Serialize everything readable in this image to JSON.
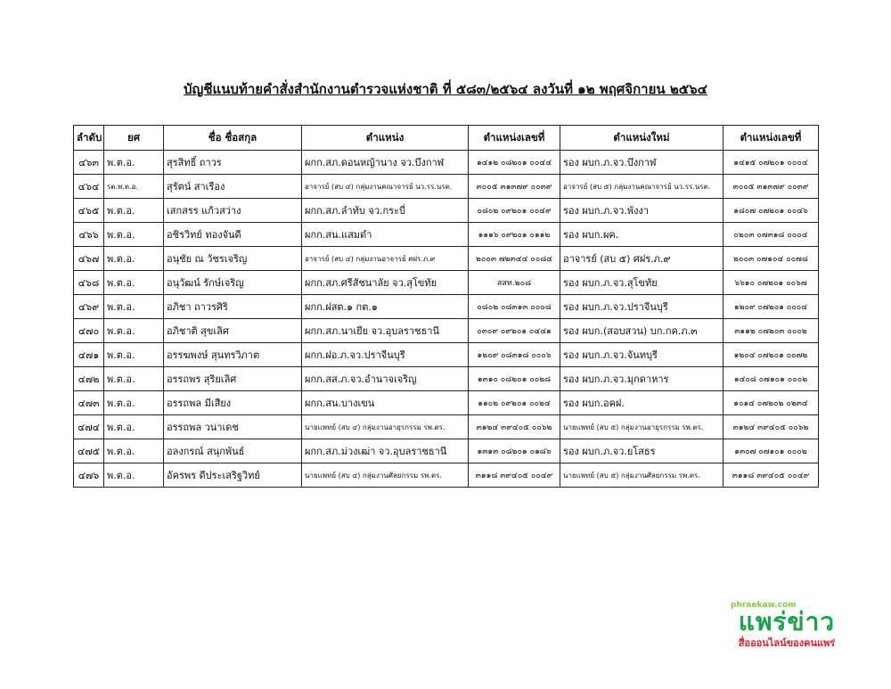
{
  "title": "บัญชีแนบท้ายคำสั่งสำนักงานตำรวจแห่งชาติ ที่ ๕๘๓/๒๕๖๔ ลงวันที่ ๑๒ พฤศจิกายน ๒๕๖๔",
  "table": {
    "headers": [
      "ลำดับ",
      "ยศ",
      "ชื่อ ชื่อสกุล",
      "ตำแหน่ง",
      "ตำแหน่งเลขที่",
      "ตำแหน่งใหม่",
      "ตำแหน่งเลขที่"
    ],
    "rows": [
      [
        "๔๖๓",
        "พ.ต.อ.",
        "สุรสิทธิ์ ถาวร",
        "ผกก.สภ.ดอนหญ้านาง จว.บึงกาฬ",
        "๑๔๑๒ ๐๘๒๐๑ ๐๐๔๔",
        "รอง ผบก.ภ.จว.บึงกาฬ",
        "๑๔๑๕ ๐๗๒๐๑ ๐๐๐๔"
      ],
      [
        "๔๖๔",
        "รต.พ.ต.อ.",
        "สุรัตน์ สาเรือง",
        "อาจารย์ (สบ ๔) กลุ่มงานคณาจารย์ นว.รร.นรต.",
        "๓๐๐๕ ๓๑๓๗๙ ๐๐๓๙",
        "อาจารย์ (สบ ๕) กลุ่มงานคณาจารย์ นว.รร.นรต.",
        "๓๐๐๕ ๓๑๓๗๙ ๐๐๓๙"
      ],
      [
        "๔๖๕",
        "พ.ต.อ.",
        "เสกสรร แก้วสว่าง",
        "ผกก.สภ.ลำทับ จว.กระบี่",
        "๐๘๐๒ ๐๙๒๐๑ ๐๐๔๙",
        "รอง ผบก.ภ.จว.พังงา",
        "๑๘๐๗ ๐๗๒๐๑ ๐๐๔๖"
      ],
      [
        "๔๖๖",
        "พ.ต.อ.",
        "อชิรวิทย์ ทองจันดี",
        "ผกก.สน.แสมดำ",
        "๑๑๑๖ ๐๙๒๐๑ ๐๑๑๒",
        "รอง ผบก.ผค.",
        "๐๒๐๓ ๐๗๓๑๘ ๐๐๐๔"
      ],
      [
        "๔๖๗",
        "พ.ต.อ.",
        "อนุชัย ณ วัชรเจริญ",
        "อาจารย์ (สบ ๔) กลุ่มงานอาจารย์ ศฝร.ภ.๙",
        "๒๐๐๓ ๗๒๓๔๔ ๐๐๘๔",
        "อาจารย์ (สบ ๕) ศฝร.ภ.๙",
        "๒๐๐๓ ๐๗๑๐๔ ๐๐๗๘"
      ],
      [
        "๔๖๘",
        "พ.ต.อ.",
        "อนุวัฒน์ รักษ์เจริญ",
        "ผกก.สภ.ศรีสัชนาลัย จว.สุโขทัย",
        "สสท.๒๐๘",
        "รอง ผบก.ภ.จว.สุโขทัย",
        "๖๖๑๐ ๐๗๒๐๑ ๐๐๖๗"
      ],
      [
        "๔๖๙",
        "พ.ต.อ.",
        "อภิชา ถาวรศิริ",
        "ผกก.ฝสต.๑ กต.๑",
        "๐๘๐๒ ๐๘๓๑๓ ๐๐๐๘",
        "รอง ผบก.ภ.จว.ปราจีนบุรี",
        "๑๒๐๙ ๐๗๒๐๑ ๐๐๐๔"
      ],
      [
        "๔๗๐",
        "พ.ต.อ.",
        "อภิชาติ สุขเลิศ",
        "ผกก.สภ.นาเยีย จว.อุบลราชธานี",
        "๐๓๐๙ ๐๙๒๐๑ ๐๔๔๑",
        "รอง ผบก.(สอบสวน) บก.กค.ภ.๓",
        "๓๑๑๒ ๐๗๒๐๓ ๐๐๐๒"
      ],
      [
        "๔๗๑",
        "พ.ต.อ.",
        "อรรฆพงษ์ สุนทรวิภาต",
        "ผกก.ฝอ.ภ.จว.ปราจีนบุรี",
        "๑๒๐๙ ๐๘๓๑๘ ๐๐๐๖",
        "รอง ผบก.ภ.จว.จันทบุรี",
        "๑๒๐๔ ๐๗๒๐๑ ๐๐๗๒"
      ],
      [
        "๔๗๒",
        "พ.ต.อ.",
        "อรรถพร สุริยเลิศ",
        "ผกก.สส.ภ.จว.อำนาจเจริญ",
        "๑๓๑๐ ๐๘๒๐๑ ๐๐๒๘",
        "รอง ผบก.ภ.จว.มุกดาหาร",
        "๑๔๐๘ ๐๗๑๐๑ ๐๐๐๒"
      ],
      [
        "๔๗๓",
        "พ.ต.อ.",
        "อรรถพล มีเสียง",
        "ผกก.สน.บางเขน",
        "๑๑๐๒ ๐๙๒๐๑ ๐๐๒๔",
        "รอง ผบก.อคฝ.",
        "๑๐๑๔ ๐๗๒๐๒ ๐๒๓๔"
      ],
      [
        "๔๗๔",
        "พ.ต.อ.",
        "อรรถพล วนาเดช",
        "นายแพทย์ (สบ ๔) กลุ่มงานอายุรกรรม รพ.ตร.",
        "๓๑๒๔ ๓๙๔๐๕ ๐๐๖๒",
        "นายแพทย์ (สบ ๕) กลุ่มงานอายุรกรรม รพ.ตร.",
        "๓๑๒๔ ๓๙๔๐๕ ๐๐๖๒"
      ],
      [
        "๔๗๕",
        "พ.ต.อ.",
        "อลงกรณ์ สนุกพันธ์",
        "ผกก.สภ.ม่วงเฒ่า จว.อุบลราชธานี",
        "๑๓๑๓ ๐๘๒๐๑ ๐๑๘๖",
        "รอง ผบก.ภ.จว.ยโสธร",
        "๑๓๐๗ ๐๗๑๐๑ ๐๐๐๒"
      ],
      [
        "๔๗๖",
        "พ.ต.อ.",
        "อัครพร ดีประเสริฐวิทย์",
        "นายแพทย์ (สบ ๔) กลุ่มงานศัลยกรรม รพ.ตร.",
        "๓๑๑๘ ๓๙๔๐๕ ๐๐๔๙",
        "นายแพทย์ (สบ ๕) กลุ่มงานศัลยกรรม รพ.ตร.",
        "๓๑๑๘ ๓๙๔๐๕ ๐๐๔๙"
      ]
    ]
  },
  "logo": {
    "url": "phraekaw.com",
    "name": "แพร่ข่าว",
    "tagline": "สื่อออนไลน์ของคนแพร่"
  },
  "colors": {
    "logo_green": "#1aa34a",
    "logo_light_green": "#8dc63f",
    "logo_red": "#e0202b"
  }
}
